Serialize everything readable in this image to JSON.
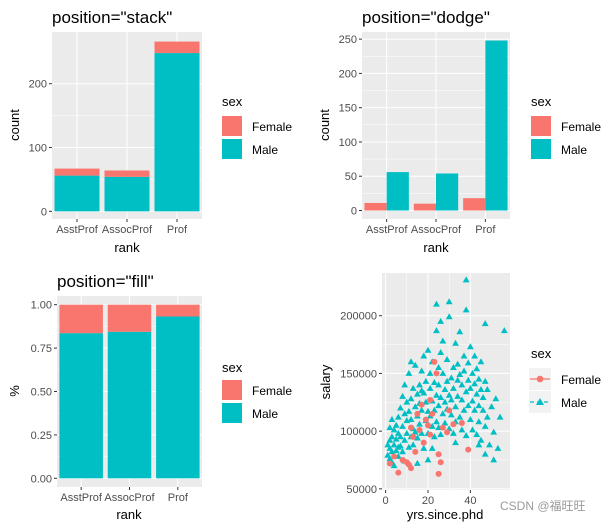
{
  "colors": {
    "female": "#F8766D",
    "male": "#00BFC4",
    "panel": "#EBEBEB",
    "grid": "#FFFFFF",
    "tick": "#4D4D4D"
  },
  "legend": {
    "title": "sex",
    "entries": [
      {
        "label": "Female",
        "color": "#F8766D"
      },
      {
        "label": "Male",
        "color": "#00BFC4"
      }
    ]
  },
  "watermark": "CSDN @福旺旺",
  "chart_data": [
    {
      "id": "stack",
      "type": "bar",
      "stacking": "stack",
      "title": "position=\"stack\"",
      "xlabel": "rank",
      "ylabel": "count",
      "categories": [
        "AsstProf",
        "AssocProf",
        "Prof"
      ],
      "series": [
        {
          "name": "Female",
          "values": [
            11,
            10,
            18
          ]
        },
        {
          "name": "Male",
          "values": [
            56,
            54,
            248
          ]
        }
      ],
      "ylim": [
        -12,
        281
      ],
      "yticks": [
        0,
        100,
        200
      ],
      "ytick_labels": [
        "0",
        "100",
        "200"
      ]
    },
    {
      "id": "dodge",
      "type": "bar",
      "stacking": "dodge",
      "title": "position=\"dodge\"",
      "xlabel": "rank",
      "ylabel": "count",
      "categories": [
        "AsstProf",
        "AssocProf",
        "Prof"
      ],
      "series": [
        {
          "name": "Female",
          "values": [
            11,
            10,
            18
          ]
        },
        {
          "name": "Male",
          "values": [
            56,
            54,
            248
          ]
        }
      ],
      "ylim": [
        -12.4,
        260.4
      ],
      "yticks": [
        0,
        50,
        100,
        150,
        200,
        250
      ],
      "ytick_labels": [
        "0",
        "50",
        "100",
        "150",
        "200",
        "250"
      ]
    },
    {
      "id": "fill",
      "type": "bar",
      "stacking": "fill",
      "title": "position=\"fill\"",
      "xlabel": "rank",
      "ylabel": "%",
      "categories": [
        "AsstProf",
        "AssocProf",
        "Prof"
      ],
      "series": [
        {
          "name": "Female",
          "values": [
            0.164,
            0.156,
            0.068
          ]
        },
        {
          "name": "Male",
          "values": [
            0.836,
            0.844,
            0.932
          ]
        }
      ],
      "ylim": [
        -0.05,
        1.05
      ],
      "yticks": [
        0,
        0.25,
        0.5,
        0.75,
        1
      ],
      "ytick_labels": [
        "0.00",
        "0.25",
        "0.50",
        "0.75",
        "1.00"
      ]
    },
    {
      "id": "scatter",
      "type": "scatter",
      "title": "",
      "xlabel": "yrs.since.phd",
      "ylabel": "salary",
      "xlim": [
        -1.7,
        58.7
      ],
      "ylim": [
        49000,
        237000
      ],
      "xticks": [
        0,
        20,
        40
      ],
      "xtick_labels": [
        "0",
        "20",
        "40"
      ],
      "yticks": [
        50000,
        100000,
        150000,
        200000
      ],
      "ytick_labels": [
        "50000",
        "100000",
        "150000",
        "200000"
      ],
      "series": [
        {
          "name": "Female",
          "marker": "circle",
          "line": "solid",
          "points": [
            [
              2,
              72000
            ],
            [
              4,
              78000
            ],
            [
              6,
              64000
            ],
            [
              8,
              75000
            ],
            [
              10,
              73000
            ],
            [
              11,
              71000
            ],
            [
              12,
              103000
            ],
            [
              13,
              95000
            ],
            [
              14,
              82000
            ],
            [
              15,
              115000
            ],
            [
              16,
              101000
            ],
            [
              17,
              123000
            ],
            [
              18,
              90000
            ],
            [
              19,
              110000
            ],
            [
              20,
              105000
            ],
            [
              21,
              127000
            ],
            [
              22,
              115000
            ],
            [
              23,
              160000
            ],
            [
              24,
              150000
            ],
            [
              25,
              63000
            ],
            [
              26,
              73000
            ],
            [
              27,
              103000
            ],
            [
              29,
              99000
            ],
            [
              30,
              118000
            ],
            [
              32,
              106000
            ],
            [
              36,
              107000
            ],
            [
              39,
              84000
            ],
            [
              25,
              80000
            ],
            [
              12,
              68000
            ],
            [
              21,
              97000
            ]
          ]
        },
        {
          "name": "Male",
          "marker": "triangle",
          "line": "dashed",
          "points": [
            [
              1,
              88000
            ],
            [
              1,
              79000
            ],
            [
              2,
              92000
            ],
            [
              2,
              85000
            ],
            [
              2,
              76000
            ],
            [
              3,
              95000
            ],
            [
              3,
              82000
            ],
            [
              3,
              73000
            ],
            [
              4,
              88000
            ],
            [
              4,
              101000
            ],
            [
              4,
              70000
            ],
            [
              5,
              93000
            ],
            [
              5,
              105000
            ],
            [
              5,
              83000
            ],
            [
              6,
              98000
            ],
            [
              6,
              112000
            ],
            [
              6,
              78000
            ],
            [
              7,
              87000
            ],
            [
              7,
              120000
            ],
            [
              7,
              95000
            ],
            [
              8,
              104000
            ],
            [
              8,
              130000
            ],
            [
              8,
              82000
            ],
            [
              9,
              115000
            ],
            [
              9,
              92000
            ],
            [
              9,
              140000
            ],
            [
              10,
              98000
            ],
            [
              10,
              125000
            ],
            [
              10,
              109000
            ],
            [
              11,
              86000
            ],
            [
              11,
              117000
            ],
            [
              11,
              150000
            ],
            [
              12,
              95000
            ],
            [
              12,
              128000
            ],
            [
              12,
              110000
            ],
            [
              13,
              102000
            ],
            [
              13,
              137000
            ],
            [
              13,
              88000
            ],
            [
              14,
              121000
            ],
            [
              14,
              99000
            ],
            [
              14,
              157000
            ],
            [
              15,
              113000
            ],
            [
              15,
              132000
            ],
            [
              15,
              94000
            ],
            [
              16,
              140000
            ],
            [
              16,
              106000
            ],
            [
              16,
              124000
            ],
            [
              17,
              98000
            ],
            [
              17,
              152000
            ],
            [
              17,
              118000
            ],
            [
              18,
              133000
            ],
            [
              18,
              85000
            ],
            [
              18,
              165000
            ],
            [
              19,
              109000
            ],
            [
              19,
              143000
            ],
            [
              19,
              125000
            ],
            [
              20,
              117000
            ],
            [
              20,
              98000
            ],
            [
              20,
              170000
            ],
            [
              21,
              137000
            ],
            [
              21,
              113000
            ],
            [
              21,
              150000
            ],
            [
              22,
              104000
            ],
            [
              22,
              160000
            ],
            [
              22,
              126000
            ],
            [
              23,
              142000
            ],
            [
              23,
              95000
            ],
            [
              23,
              118000
            ],
            [
              24,
              131000
            ],
            [
              24,
              187000
            ],
            [
              24,
              108000
            ],
            [
              25,
              155000
            ],
            [
              25,
              122000
            ],
            [
              25,
              140000
            ],
            [
              26,
              97000
            ],
            [
              26,
              168000
            ],
            [
              26,
              129000
            ],
            [
              27,
              115000
            ],
            [
              27,
              150000
            ],
            [
              27,
              178000
            ],
            [
              28,
              136000
            ],
            [
              28,
              107000
            ],
            [
              28,
              125000
            ],
            [
              29,
              162000
            ],
            [
              29,
              119000
            ],
            [
              29,
              143000
            ],
            [
              30,
              102000
            ],
            [
              30,
              131000
            ],
            [
              30,
              199000
            ],
            [
              31,
              146000
            ],
            [
              31,
              114000
            ],
            [
              31,
              127000
            ],
            [
              32,
              155000
            ],
            [
              32,
              98000
            ],
            [
              32,
              137000
            ],
            [
              33,
              121000
            ],
            [
              33,
              176000
            ],
            [
              33,
              108000
            ],
            [
              34,
              144000
            ],
            [
              34,
              130000
            ],
            [
              34,
              158000
            ],
            [
              35,
              112000
            ],
            [
              35,
              149000
            ],
            [
              35,
              186000
            ],
            [
              36,
              127000
            ],
            [
              36,
              101000
            ],
            [
              36,
              140000
            ],
            [
              37,
              165000
            ],
            [
              37,
              118000
            ],
            [
              37,
              152000
            ],
            [
              38,
              134000
            ],
            [
              38,
              96000
            ],
            [
              38,
              205000
            ],
            [
              39,
              144000
            ],
            [
              39,
              122000
            ],
            [
              39,
              159000
            ],
            [
              40,
              110000
            ],
            [
              40,
              137000
            ],
            [
              40,
              173000
            ],
            [
              41,
              126000
            ],
            [
              41,
              150000
            ],
            [
              41,
              101000
            ],
            [
              42,
              141000
            ],
            [
              42,
              118000
            ],
            [
              42,
              165000
            ],
            [
              43,
              132000
            ],
            [
              43,
              97000
            ],
            [
              43,
              154000
            ],
            [
              44,
              122000
            ],
            [
              44,
              145000
            ],
            [
              44,
              108000
            ],
            [
              45,
              136000
            ],
            [
              45,
              92000
            ],
            [
              45,
              160000
            ],
            [
              46,
              118000
            ],
            [
              46,
              129000
            ],
            [
              47,
              143000
            ],
            [
              47,
              104000
            ],
            [
              48,
              112000
            ],
            [
              48,
              136000
            ],
            [
              49,
              88000
            ],
            [
              50,
              121000
            ],
            [
              51,
              99000
            ],
            [
              52,
              128000
            ],
            [
              53,
              85000
            ],
            [
              54,
              112000
            ],
            [
              56,
              187000
            ],
            [
              38,
              231000
            ],
            [
              47,
              193000
            ],
            [
              30,
              212000
            ],
            [
              26,
              195000
            ],
            [
              2,
              103000
            ],
            [
              3,
              110000
            ],
            [
              12,
              160000
            ],
            [
              25,
              103000
            ],
            [
              22,
              85000
            ],
            [
              17,
              135000
            ],
            [
              33,
              90000
            ],
            [
              44,
              88000
            ],
            [
              47,
              80000
            ],
            [
              51,
              75000
            ],
            [
              24,
              210000
            ],
            [
              20,
              75000
            ],
            [
              15,
              72000
            ],
            [
              9,
              74000
            ],
            [
              6,
              86000
            ]
          ]
        }
      ]
    }
  ]
}
